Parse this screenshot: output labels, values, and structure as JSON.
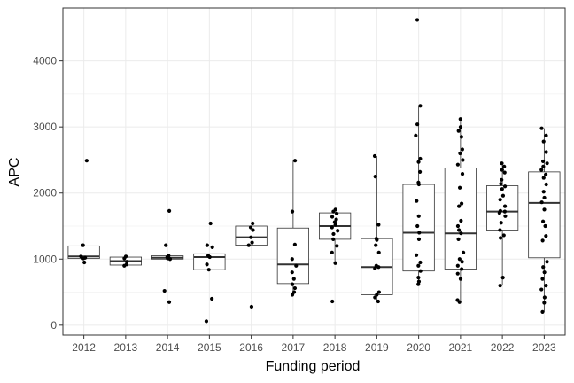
{
  "chart_data": {
    "type": "boxplot",
    "title": "",
    "xlabel": "Funding period",
    "ylabel": "APC",
    "ylim": [
      -150,
      4800
    ],
    "yticks": [
      0,
      1000,
      2000,
      3000,
      4000
    ],
    "grid": true,
    "legend": "none",
    "colors": {
      "panel_border": "#333333",
      "grid": "#ebebeb",
      "box": "#333333",
      "point": "#000000",
      "background": "#ffffff"
    },
    "categories": [
      "2012",
      "2013",
      "2014",
      "2015",
      "2016",
      "2017",
      "2018",
      "2019",
      "2020",
      "2021",
      "2022",
      "2023"
    ],
    "boxes": [
      {
        "q1": 1010,
        "median": 1040,
        "q3": 1200,
        "whisker_low": 1010,
        "whisker_high": 1200,
        "points": [
          2490,
          1210,
          1040,
          1020,
          1010,
          950
        ]
      },
      {
        "q1": 910,
        "median": 970,
        "q3": 1030,
        "whisker_low": 910,
        "whisker_high": 1030,
        "points": [
          1040,
          1010,
          960,
          920,
          900
        ]
      },
      {
        "q1": 1000,
        "median": 1020,
        "q3": 1050,
        "whisker_low": 1000,
        "whisker_high": 1050,
        "points": [
          1730,
          1210,
          1050,
          1030,
          1010,
          1000,
          520,
          350
        ]
      },
      {
        "q1": 840,
        "median": 1030,
        "q3": 1080,
        "whisker_low": 840,
        "whisker_high": 1080,
        "points": [
          1540,
          1210,
          1180,
          1050,
          1030,
          920,
          840,
          400,
          60
        ]
      },
      {
        "q1": 1210,
        "median": 1330,
        "q3": 1500,
        "whisker_low": 1210,
        "whisker_high": 1500,
        "points": [
          1540,
          1480,
          1440,
          1330,
          1250,
          1210,
          280
        ]
      },
      {
        "q1": 630,
        "median": 920,
        "q3": 1470,
        "whisker_low": 460,
        "whisker_high": 2490,
        "points": [
          2490,
          1720,
          1220,
          1000,
          900,
          800,
          700,
          620,
          560,
          500,
          460
        ]
      },
      {
        "q1": 1300,
        "median": 1500,
        "q3": 1700,
        "whisker_low": 940,
        "whisker_high": 1750,
        "points": [
          1750,
          1720,
          1690,
          1640,
          1600,
          1560,
          1520,
          1480,
          1430,
          1380,
          1300,
          1200,
          1100,
          940,
          360
        ]
      },
      {
        "q1": 460,
        "median": 880,
        "q3": 1310,
        "whisker_low": 360,
        "whisker_high": 2560,
        "points": [
          2560,
          2250,
          1520,
          1310,
          1290,
          1210,
          1100,
          900,
          880,
          860,
          500,
          460,
          420,
          360
        ]
      },
      {
        "q1": 820,
        "median": 1400,
        "q3": 2130,
        "whisker_low": 620,
        "whisker_high": 3320,
        "points": [
          4620,
          3320,
          3040,
          2870,
          2520,
          2470,
          2320,
          2160,
          2130,
          1880,
          1650,
          1500,
          1400,
          1300,
          1060,
          950,
          900,
          820,
          720,
          660,
          620
        ]
      },
      {
        "q1": 850,
        "median": 1390,
        "q3": 2380,
        "whisker_low": 350,
        "whisker_high": 3120,
        "points": [
          3120,
          3000,
          2940,
          2850,
          2660,
          2600,
          2500,
          2430,
          2290,
          2080,
          1840,
          1800,
          1580,
          1500,
          1440,
          1390,
          1300,
          1100,
          1000,
          960,
          900,
          850,
          780,
          700,
          380,
          350
        ]
      },
      {
        "q1": 1440,
        "median": 1720,
        "q3": 2110,
        "whisker_low": 600,
        "whisker_high": 2450,
        "points": [
          2450,
          2400,
          2350,
          2310,
          2200,
          2140,
          2100,
          2060,
          1960,
          1900,
          1800,
          1730,
          1720,
          1700,
          1650,
          1550,
          1440,
          1360,
          1320,
          720,
          600
        ]
      },
      {
        "q1": 1020,
        "median": 1850,
        "q3": 2320,
        "whisker_low": 200,
        "whisker_high": 2980,
        "points": [
          2980,
          2870,
          2780,
          2620,
          2480,
          2450,
          2400,
          2350,
          2280,
          2230,
          2130,
          2020,
          1930,
          1860,
          1750,
          1570,
          1500,
          1350,
          1280,
          960,
          880,
          800,
          700,
          600,
          540,
          420,
          340,
          200
        ]
      }
    ]
  }
}
